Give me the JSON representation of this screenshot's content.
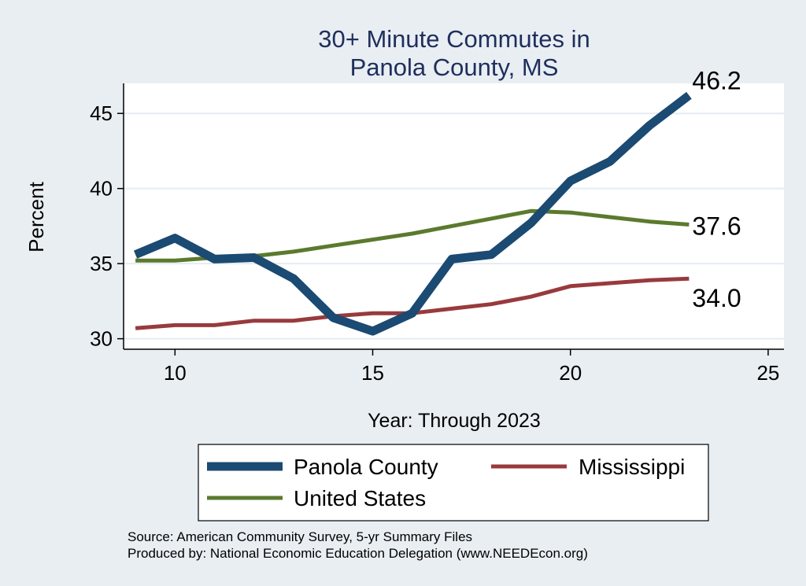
{
  "chart_data": {
    "type": "line",
    "title": [
      "30+ Minute Commutes in",
      "Panola County, MS"
    ],
    "xlabel": "Year: Through 2023",
    "ylabel": "Percent",
    "xlim": [
      8.7,
      25.4
    ],
    "ylim": [
      29.3,
      47.0
    ],
    "xticks": [
      10,
      15,
      20,
      25
    ],
    "yticks": [
      30,
      35,
      40,
      45
    ],
    "grid": true,
    "legend_position": "bottom",
    "colors": {
      "page_background": "#e9eef3",
      "plot_background": "#ffffff",
      "gridline": "#e5ecf2",
      "title": "#1f2f5c"
    },
    "series": [
      {
        "name": "Panola County",
        "color": "#1b4a72",
        "x": [
          9,
          10,
          11,
          12,
          13,
          14,
          15,
          16,
          17,
          18,
          19,
          20,
          21,
          22,
          23
        ],
        "values": [
          35.6,
          36.7,
          35.3,
          35.4,
          34.0,
          31.4,
          30.5,
          31.7,
          35.3,
          35.6,
          37.7,
          40.5,
          41.8,
          44.2,
          46.2
        ],
        "end_label": "46.2"
      },
      {
        "name": "Mississippi",
        "color": "#983a3d",
        "x": [
          9,
          10,
          11,
          12,
          13,
          14,
          15,
          16,
          17,
          18,
          19,
          20,
          21,
          22,
          23
        ],
        "values": [
          30.7,
          30.9,
          30.9,
          31.2,
          31.2,
          31.5,
          31.7,
          31.7,
          32.0,
          32.3,
          32.8,
          33.5,
          33.7,
          33.9,
          34.0
        ],
        "end_label": "34.0"
      },
      {
        "name": "United States",
        "color": "#5b7a2d",
        "x": [
          9,
          10,
          11,
          12,
          13,
          14,
          15,
          16,
          17,
          18,
          19,
          20,
          21,
          22,
          23
        ],
        "values": [
          35.2,
          35.2,
          35.4,
          35.5,
          35.8,
          36.2,
          36.6,
          37.0,
          37.5,
          38.0,
          38.5,
          38.4,
          38.1,
          37.8,
          37.6
        ],
        "end_label": "37.6"
      }
    ]
  },
  "footer": {
    "source": "Source: American Community Survey, 5-yr Summary Files",
    "producer": "Produced by: National Economic Education Delegation (www.NEEDEcon.org)"
  }
}
